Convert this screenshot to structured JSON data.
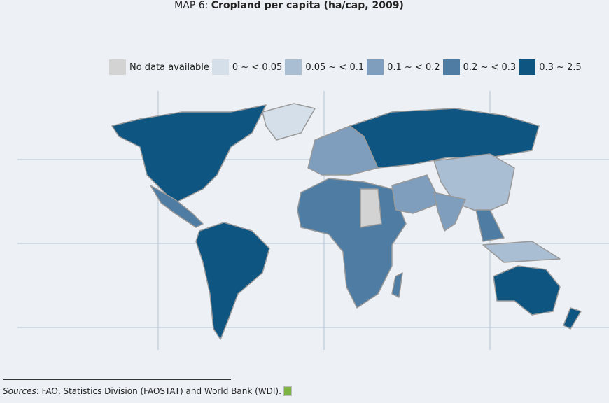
{
  "title": {
    "prefix": "MAP 6: ",
    "main": "Cropland per capita (ha/cap, 2009)"
  },
  "legend": [
    {
      "label": "No data available",
      "color": "#d3d3d3"
    },
    {
      "label": "0 ~ < 0.05",
      "color": "#d5dfe9"
    },
    {
      "label": "0.05 ~ < 0.1",
      "color": "#a9bdd3"
    },
    {
      "label": "0.1 ~ < 0.2",
      "color": "#7f9dbd"
    },
    {
      "label": "0.2 ~ < 0.3",
      "color": "#4f7ca3"
    },
    {
      "label": "0.3 ~ 2.5",
      "color": "#0f5581"
    }
  ],
  "source": {
    "label": "Sources",
    "text": ": FAO, Statistics Division (FAOSTAT) and World Bank (WDI)."
  }
}
